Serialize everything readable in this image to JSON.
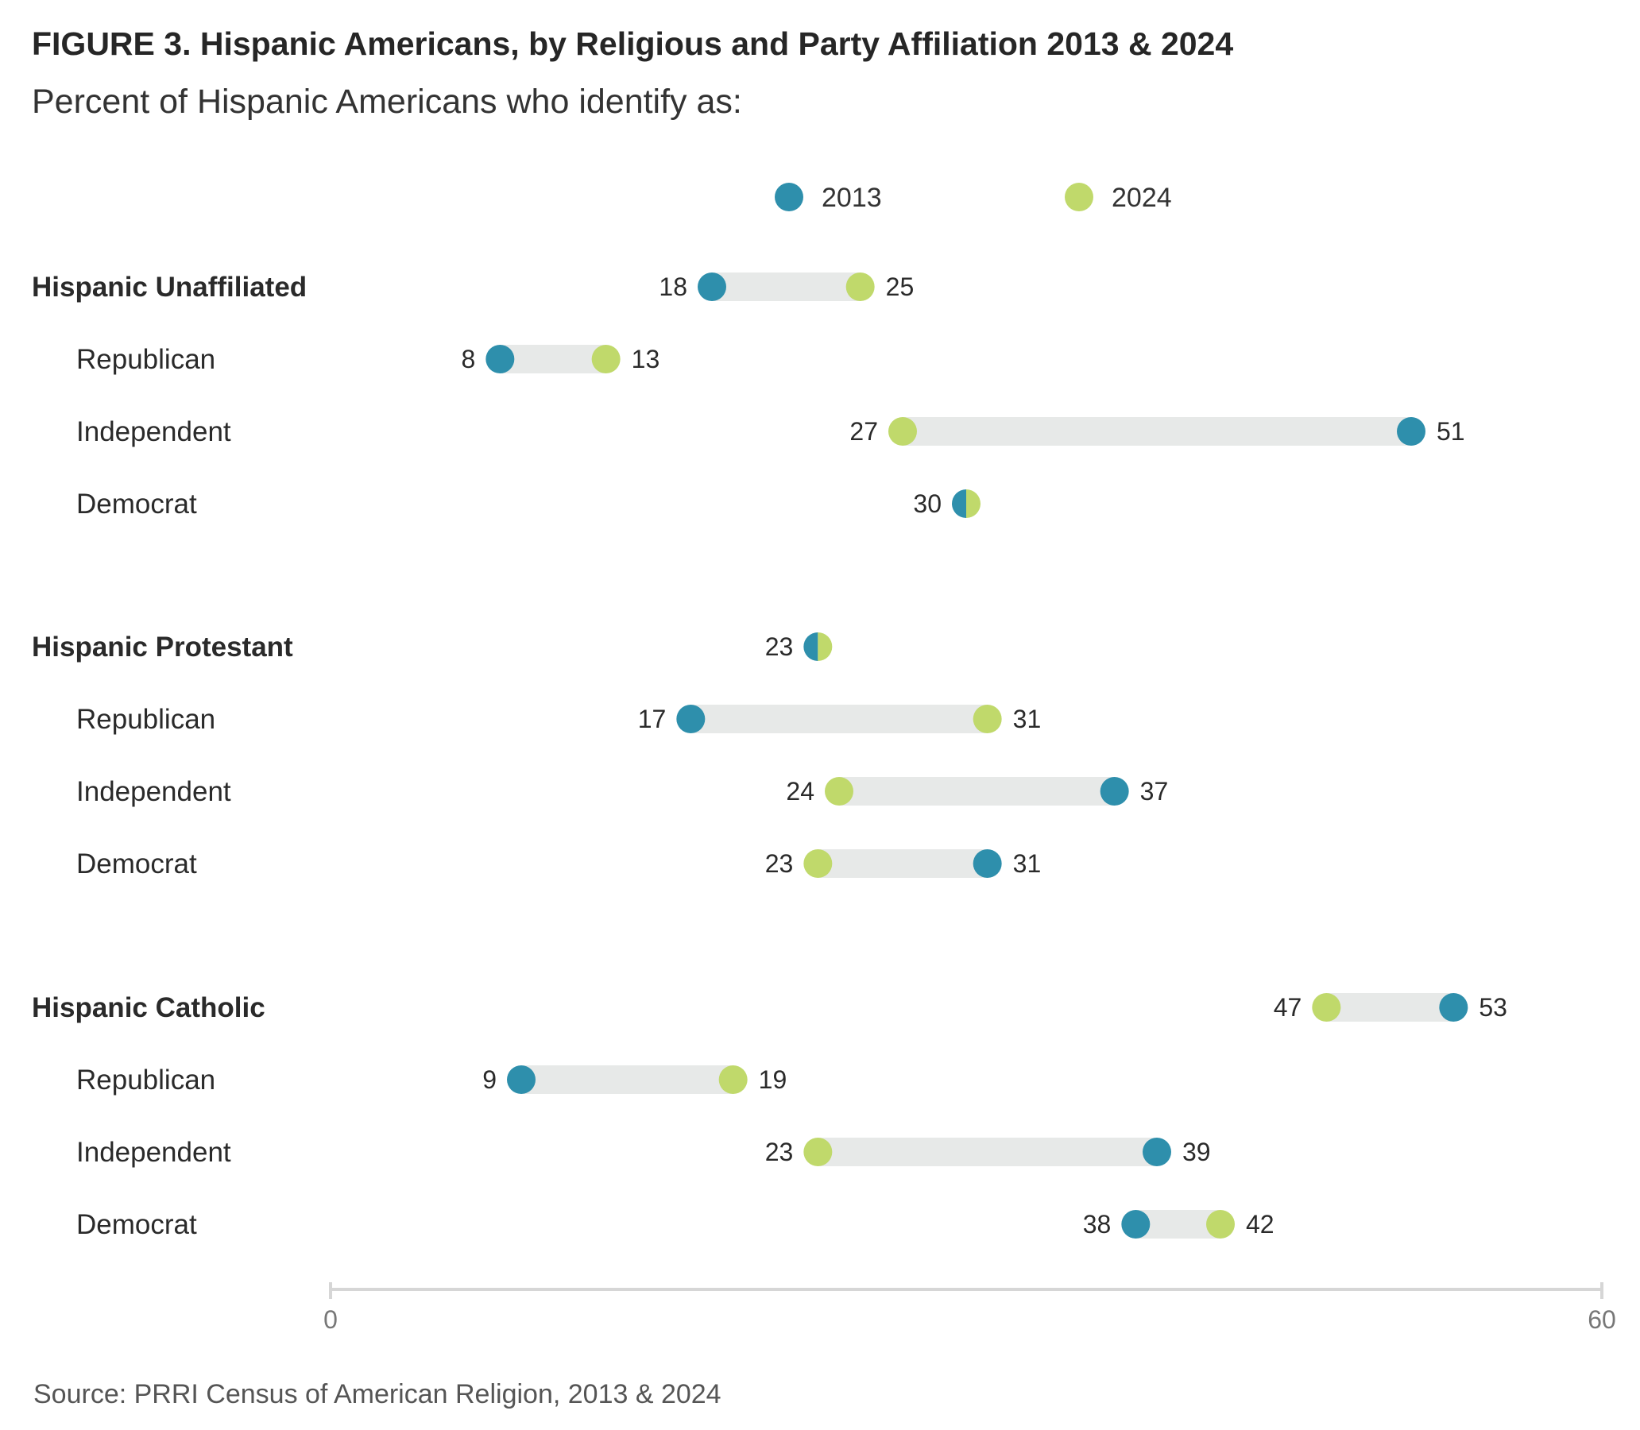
{
  "title": "FIGURE 3.  Hispanic Americans, by Religious and Party Affiliation 2013 & 2024",
  "subtitle": "Percent of Hispanic Americans who identify as:",
  "source": "Source: PRRI Census of American Religion, 2013 & 2024",
  "colors": {
    "2013": "#2e8fac",
    "2024": "#c0d96b",
    "connector": "#e7e9e8",
    "axis": "#d6d6d6"
  },
  "chart_data": {
    "type": "dumbbell",
    "legend": [
      "2013",
      "2024"
    ],
    "legend_position": "top",
    "xlim": [
      0,
      60
    ],
    "x_ticks": [
      "0",
      "60"
    ],
    "grid": false,
    "rows": [
      {
        "label": "Hispanic Unaffiliated",
        "group": true,
        "v2013": 18,
        "v2024": 25
      },
      {
        "label": "Republican",
        "group": false,
        "v2013": 8,
        "v2024": 13
      },
      {
        "label": "Independent",
        "group": false,
        "v2013": 51,
        "v2024": 27
      },
      {
        "label": "Democrat",
        "group": false,
        "v2013": 30,
        "v2024": 30
      },
      {
        "label": "Hispanic Protestant",
        "group": true,
        "v2013": 23,
        "v2024": 23
      },
      {
        "label": "Republican",
        "group": false,
        "v2013": 17,
        "v2024": 31
      },
      {
        "label": "Independent",
        "group": false,
        "v2013": 37,
        "v2024": 24
      },
      {
        "label": "Democrat",
        "group": false,
        "v2013": 31,
        "v2024": 23
      },
      {
        "label": "Hispanic Catholic",
        "group": true,
        "v2013": 53,
        "v2024": 47
      },
      {
        "label": "Republican",
        "group": false,
        "v2013": 9,
        "v2024": 19
      },
      {
        "label": "Independent",
        "group": false,
        "v2013": 39,
        "v2024": 23
      },
      {
        "label": "Democrat",
        "group": false,
        "v2013": 38,
        "v2024": 42
      }
    ]
  }
}
